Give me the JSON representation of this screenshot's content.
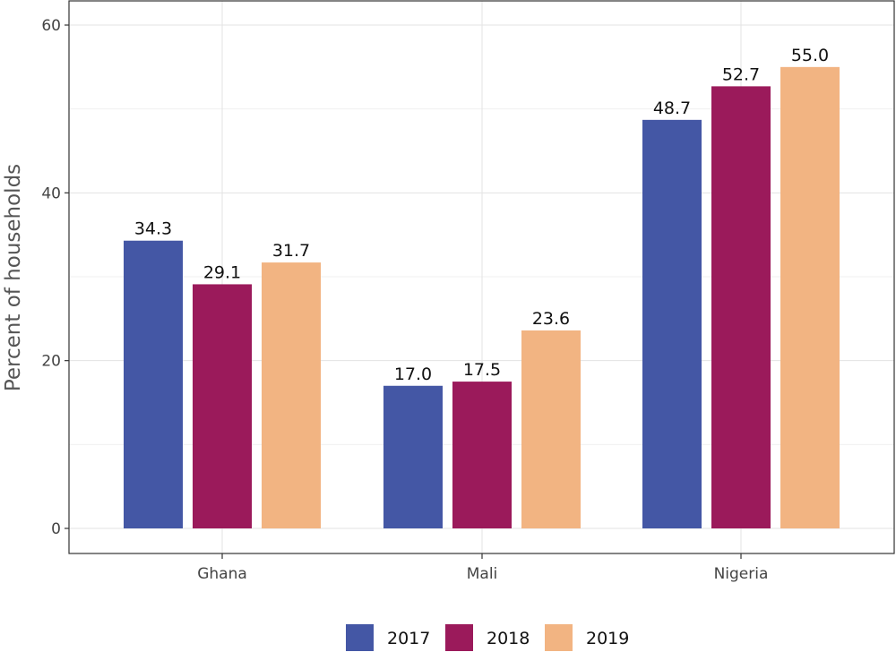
{
  "chart_data": {
    "type": "bar",
    "title": "",
    "xlabel": "",
    "ylabel": "Percent of households",
    "ylim": [
      0,
      60
    ],
    "yticks": [
      0,
      20,
      40,
      60
    ],
    "grid": true,
    "legend_position": "bottom",
    "categories": [
      "Ghana",
      "Mali",
      "Nigeria"
    ],
    "series": [
      {
        "name": "2017",
        "color": "#4457a5",
        "values": [
          34.3,
          17.0,
          48.7
        ],
        "labels": [
          "34.3",
          "17.0",
          "48.7"
        ]
      },
      {
        "name": "2018",
        "color": "#9b1a5b",
        "values": [
          29.1,
          17.5,
          52.7
        ],
        "labels": [
          "29.1",
          "17.5",
          "52.7"
        ]
      },
      {
        "name": "2019",
        "color": "#f2b482",
        "values": [
          31.7,
          23.6,
          55.0
        ],
        "labels": [
          "31.7",
          "23.6",
          "55.0"
        ]
      }
    ]
  }
}
